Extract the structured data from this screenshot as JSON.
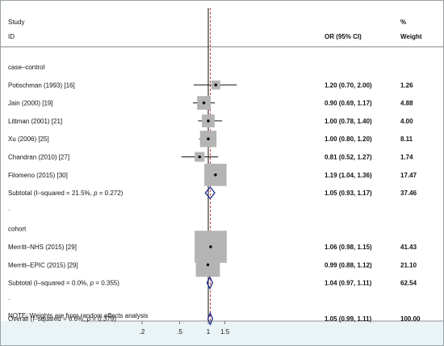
{
  "chart_data": {
    "type": "forest",
    "headers": {
      "study_line1": "Study",
      "study_line2": "ID",
      "ci": "OR (95% CI)",
      "weight_line1": "%",
      "weight_line2": "Weight"
    },
    "x_scale": "log",
    "x_ticks": [
      {
        "value": 0.2,
        "label": ".2"
      },
      {
        "value": 0.5,
        "label": ".5"
      },
      {
        "value": 1,
        "label": "1"
      },
      {
        "value": 1.5,
        "label": "1.5"
      }
    ],
    "null_value": 1,
    "overall_value": 1.05,
    "groups": [
      {
        "name": "case–control",
        "studies": [
          {
            "label": "Potischman (1993) [16]",
            "or": 1.2,
            "lo": 0.7,
            "hi": 2.0,
            "ci_text": "1.20 (0.70, 2.00)",
            "weight": "1.26"
          },
          {
            "label": "Jain (2000) [19]",
            "or": 0.9,
            "lo": 0.69,
            "hi": 1.17,
            "ci_text": "0.90 (0.69, 1.17)",
            "weight": "4.88"
          },
          {
            "label": "Littman (2001) [21]",
            "or": 1.0,
            "lo": 0.78,
            "hi": 1.4,
            "ci_text": "1.00 (0.78, 1.40)",
            "weight": "4.00"
          },
          {
            "label": "Xu (2006) [25]",
            "or": 1.0,
            "lo": 0.8,
            "hi": 1.2,
            "ci_text": "1.00 (0.80, 1.20)",
            "weight": "8.11"
          },
          {
            "label": "Chandran (2010) [27]",
            "or": 0.81,
            "lo": 0.52,
            "hi": 1.27,
            "ci_text": "0.81 (0.52, 1.27)",
            "weight": "1.74"
          },
          {
            "label": "Filomeno (2015) [30]",
            "or": 1.19,
            "lo": 1.04,
            "hi": 1.36,
            "ci_text": "1.19 (1.04, 1.36)",
            "weight": "17.47"
          }
        ],
        "subtotal": {
          "label_prefix": "Subtotal  (I–squared = 21.5%, ",
          "p_symbol": "p",
          "label_suffix": " = 0.272)",
          "or": 1.05,
          "lo": 0.93,
          "hi": 1.17,
          "ci_text": "1.05 (0.93, 1.17)",
          "weight": "37.46"
        }
      },
      {
        "name": "cohort",
        "studies": [
          {
            "label": "Merritt–NHS (2015) [29]",
            "or": 1.06,
            "lo": 0.98,
            "hi": 1.15,
            "ci_text": "1.06 (0.98, 1.15)",
            "weight": "41.43"
          },
          {
            "label": "Merritt–EPIC (2015) [29]",
            "or": 0.99,
            "lo": 0.88,
            "hi": 1.12,
            "ci_text": "0.99 (0.88, 1.12)",
            "weight": "21.10"
          }
        ],
        "subtotal": {
          "label_prefix": "Subtotal  (I–squared = 0.0%, ",
          "p_symbol": "p",
          "label_suffix": " = 0.355)",
          "or": 1.04,
          "lo": 0.97,
          "hi": 1.11,
          "ci_text": "1.04 (0.97, 1.11)",
          "weight": "62.54"
        }
      }
    ],
    "overall": {
      "label_prefix": "Overall  (I–squared = 6.6%, ",
      "p_symbol": "p",
      "label_suffix": " = 0.379)",
      "or": 1.05,
      "lo": 0.99,
      "hi": 1.11,
      "ci_text": "1.05 (0.99, 1.11)",
      "weight": "100.00"
    },
    "separator_text": ".",
    "note": "NOTE: Weights are from random effects analysis",
    "colors": {
      "box": "#b4b4b4",
      "diamond": "#1f2a8c",
      "dashed_line": "#c0392b",
      "axis_band": "#eaf3f6",
      "frame": "#9aa3a8"
    }
  }
}
